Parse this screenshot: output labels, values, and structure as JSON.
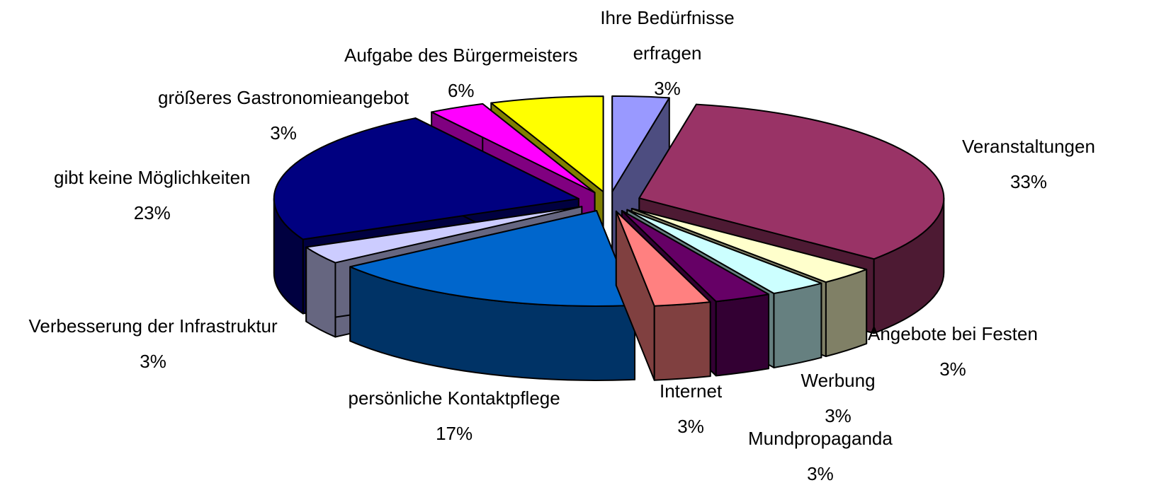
{
  "chart_data": {
    "type": "pie3d",
    "categories": [
      "Ihre Bedürfnisse erfragen",
      "Veranstaltungen",
      "Angebote bei Festen",
      "Werbung",
      "Mundpropaganda",
      "Internet",
      "persönliche Kontaktpflege",
      "Verbesserung der Infrastruktur",
      "gibt keine Möglichkeiten",
      "größeres Gastronomieangebot",
      "Aufgabe des Bürgermeisters"
    ],
    "values": [
      3,
      33,
      3,
      3,
      3,
      3,
      17,
      3,
      23,
      3,
      6
    ],
    "value_labels": [
      "3%",
      "33%",
      "3%",
      "3%",
      "3%",
      "3%",
      "17%",
      "3%",
      "23%",
      "3%",
      "6%"
    ],
    "colors": [
      "#9999ff",
      "#993366",
      "#ffffcc",
      "#ccffff",
      "#660066",
      "#ff8080",
      "#0066cc",
      "#ccccff",
      "#000080",
      "#ff00ff",
      "#ffff00"
    ],
    "side_colors": [
      "#4d4d80",
      "#4d1a33",
      "#808066",
      "#668080",
      "#330033",
      "#804040",
      "#003366",
      "#666680",
      "#000040",
      "#800080",
      "#808000"
    ]
  }
}
